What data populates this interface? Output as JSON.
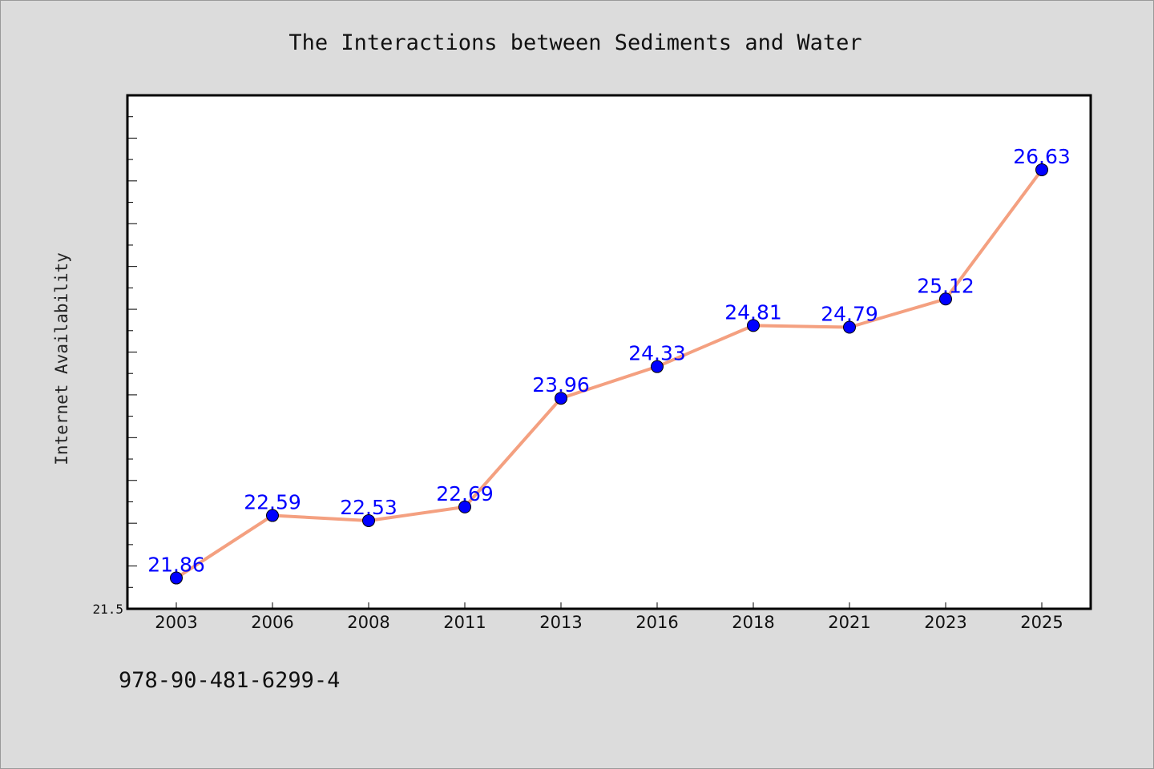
{
  "chart_data": {
    "type": "line",
    "title": "The Interactions between Sediments and Water",
    "xlabel": "",
    "ylabel": "Internet Availability",
    "categories": [
      "2003",
      "2006",
      "2008",
      "2011",
      "2013",
      "2016",
      "2018",
      "2021",
      "2023",
      "2025"
    ],
    "series": [
      {
        "values": [
          21.86,
          22.59,
          22.53,
          22.69,
          23.96,
          24.33,
          24.81,
          24.79,
          25.12,
          26.63
        ],
        "labels": [
          "21.86",
          "22.59",
          "22.53",
          "22.69",
          "23.96",
          "24.33",
          "24.81",
          "24.79",
          "25.12",
          "26.63"
        ]
      }
    ],
    "ylim": [
      21.5,
      27.5
    ],
    "yticks_labeled": [
      "21.5"
    ],
    "grid": false,
    "legend": "none",
    "colors": {
      "line": "#f4a080",
      "marker": "#0000ff",
      "data_label": "#0000ff",
      "background": "#dcdcdc",
      "plot_background": "#ffffff"
    }
  },
  "footer": {
    "isbn": "978-90-481-6299-4"
  }
}
